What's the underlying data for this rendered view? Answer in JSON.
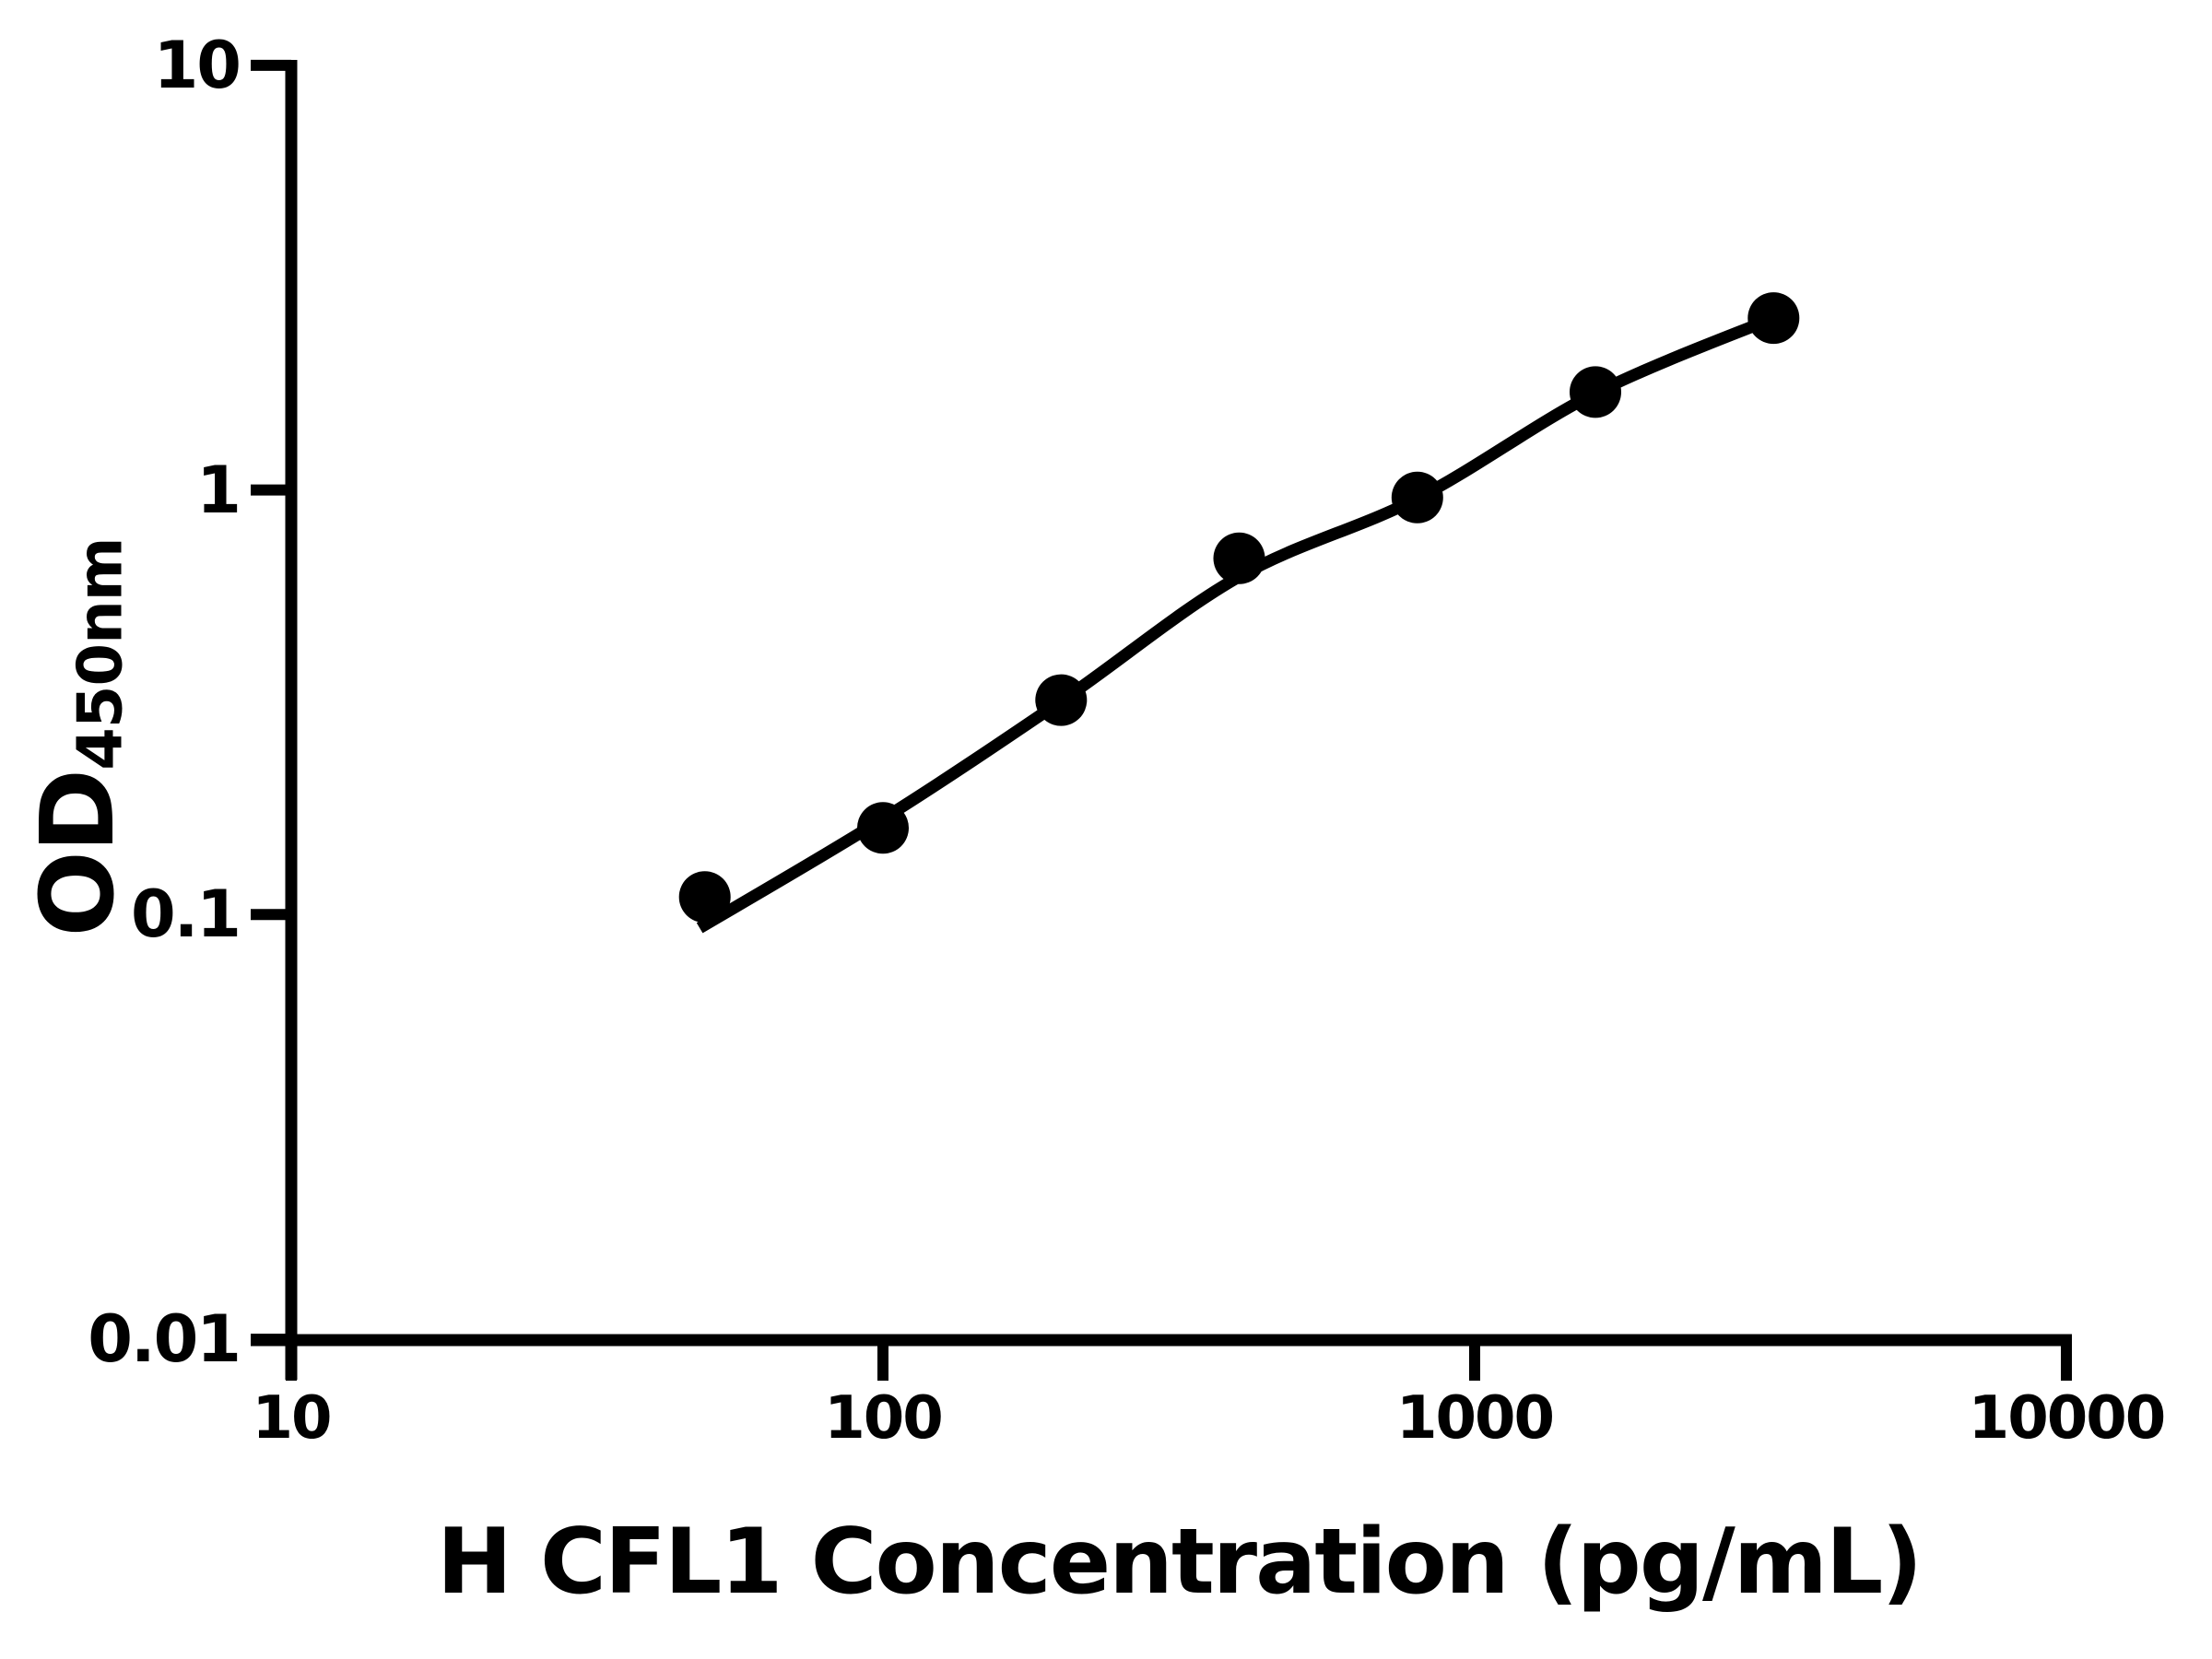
{
  "chart_data": {
    "type": "scatter",
    "title": "",
    "xlabel": "H CFL1 Concentration (pg/mL)",
    "ylabel_main": "OD",
    "ylabel_sub": "450nm",
    "x_scale": "log",
    "y_scale": "log",
    "x_range": [
      10,
      10000
    ],
    "y_range": [
      0.01,
      10
    ],
    "x_ticks": [
      10,
      100,
      1000,
      10000
    ],
    "x_tick_labels": [
      "10",
      "100",
      "1000",
      "10000"
    ],
    "y_ticks": [
      10,
      1,
      0.1,
      0.01
    ],
    "y_tick_labels": [
      "10",
      "1",
      "0.1",
      "0.01"
    ],
    "grid": false,
    "legend": false,
    "colors": {
      "foreground": "#000000",
      "background": "#ffffff"
    },
    "series": [
      {
        "name": "standard-points",
        "type": "scatter",
        "marker": "circle",
        "marker_color": "#000000",
        "x": [
          50,
          100,
          200,
          400,
          800,
          1600,
          3200
        ],
        "y": [
          0.11,
          0.16,
          0.32,
          0.69,
          0.96,
          1.7,
          2.54
        ]
      },
      {
        "name": "fit-line",
        "type": "line",
        "line_color": "#000000",
        "x": [
          49,
          100,
          200,
          400,
          800,
          1600,
          3200
        ],
        "y": [
          0.093,
          0.168,
          0.318,
          0.625,
          0.955,
          1.69,
          2.54
        ]
      }
    ]
  }
}
